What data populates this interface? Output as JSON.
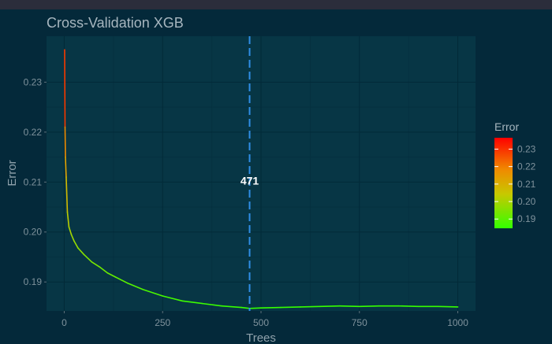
{
  "chart_data": {
    "type": "line",
    "title": "Cross-Validation XGB",
    "xlabel": "Trees",
    "ylabel": "Error",
    "xlim": [
      -45,
      1045
    ],
    "ylim": [
      0.1842,
      0.2392
    ],
    "xticks": [
      0,
      250,
      500,
      750,
      1000
    ],
    "yticks": [
      0.19,
      0.2,
      0.21,
      0.22,
      0.23
    ],
    "ytick_labels": [
      "0.19",
      "0.20",
      "0.21",
      "0.22",
      "0.23"
    ],
    "grid": true,
    "series": [
      {
        "x": [
          1,
          2,
          3,
          5,
          8,
          12,
          18,
          25,
          35,
          50,
          70,
          90,
          110,
          130,
          160,
          200,
          250,
          300,
          350,
          400,
          450,
          471,
          500,
          550,
          600,
          650,
          700,
          750,
          800,
          850,
          900,
          950,
          1000
        ],
        "values": [
          0.2365,
          0.221,
          0.215,
          0.211,
          0.204,
          0.201,
          0.1995,
          0.1982,
          0.1968,
          0.1955,
          0.194,
          0.193,
          0.1918,
          0.191,
          0.1898,
          0.1885,
          0.1872,
          0.1862,
          0.1857,
          0.1852,
          0.1849,
          0.1847,
          0.1848,
          0.1849,
          0.185,
          0.1851,
          0.1852,
          0.1851,
          0.1852,
          0.1852,
          0.1851,
          0.1851,
          0.185
        ]
      }
    ],
    "vline": {
      "x": 471,
      "label": "471",
      "color": "#2f8fe6",
      "style": "dashed"
    },
    "line_colors": {
      "low": "#33ff00",
      "mid": "#c8c800",
      "high": "#ff0000"
    },
    "legend": {
      "title": "Error",
      "placement": "right",
      "labels": [
        "0.23",
        "0.22",
        "0.21",
        "0.20",
        "0.19"
      ],
      "values": [
        0.23,
        0.22,
        0.21,
        0.2,
        0.19
      ],
      "range": [
        0.1847,
        0.2365
      ]
    },
    "colors": {
      "page_background": "#04293a",
      "panel_background": "#073645",
      "grid_major": "#022a38",
      "grid_minor": "#05303f"
    }
  }
}
